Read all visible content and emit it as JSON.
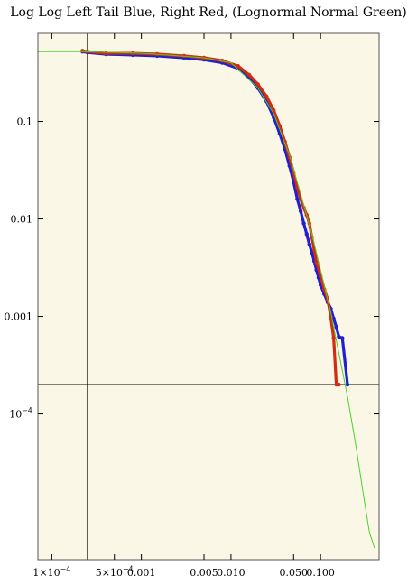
{
  "chart_data": {
    "type": "scatter",
    "title": "Log Log Left Tail Blue, Right Red, (Lognormal Normal Green)",
    "xlabel": "",
    "ylabel": "",
    "x_scale": "log",
    "y_scale": "log",
    "xlim": [
      7e-05,
      0.45
    ],
    "ylim": [
      3.2e-06,
      0.8
    ],
    "grid": false,
    "background": "#fbf7e6",
    "x_ticks": [
      {
        "value": 0.0001,
        "label": "1×10",
        "exp": "−4"
      },
      {
        "value": 0.0005,
        "label": "5×10",
        "exp": "−4"
      },
      {
        "value": 0.001,
        "label": "0.001"
      },
      {
        "value": 0.005,
        "label": "0.005"
      },
      {
        "value": 0.01,
        "label": "0.010"
      },
      {
        "value": 0.05,
        "label": "0.050"
      },
      {
        "value": 0.1,
        "label": "0.100"
      }
    ],
    "y_ticks": [
      {
        "value": 0.1,
        "label": "0.1"
      },
      {
        "value": 0.01,
        "label": "0.01"
      },
      {
        "value": 0.001,
        "label": "0.001"
      },
      {
        "value": 0.0001,
        "label": "10",
        "exp": "−4"
      }
    ],
    "reference_lines": {
      "x": 0.00025,
      "y": 0.0002
    },
    "series": [
      {
        "color": "#1f1fd6",
        "style": "points",
        "x": [
          0.00022,
          0.00025,
          0.0004,
          0.0008,
          0.0015,
          0.003,
          0.005,
          0.008,
          0.012,
          0.016,
          0.02,
          0.025,
          0.03,
          0.035,
          0.04,
          0.045,
          0.05,
          0.055,
          0.06,
          0.065,
          0.07,
          0.075,
          0.08,
          0.085,
          0.09,
          0.095,
          0.1,
          0.11,
          0.12,
          0.13,
          0.14,
          0.15,
          0.16,
          0.175,
          0.2
        ],
        "y": [
          0.52,
          0.51,
          0.49,
          0.48,
          0.47,
          0.45,
          0.43,
          0.4,
          0.35,
          0.28,
          0.22,
          0.16,
          0.11,
          0.075,
          0.052,
          0.035,
          0.024,
          0.016,
          0.012,
          0.009,
          0.007,
          0.0055,
          0.0045,
          0.0037,
          0.003,
          0.0025,
          0.0021,
          0.0017,
          0.0014,
          0.0012,
          0.00095,
          0.00078,
          0.00062,
          0.0006,
          0.0002
        ]
      },
      {
        "color": "#d42a10",
        "style": "points",
        "x": [
          0.00022,
          0.00025,
          0.0004,
          0.0008,
          0.0015,
          0.003,
          0.005,
          0.008,
          0.012,
          0.016,
          0.02,
          0.025,
          0.03,
          0.035,
          0.04,
          0.045,
          0.05,
          0.055,
          0.06,
          0.065,
          0.07,
          0.075,
          0.08,
          0.085,
          0.09,
          0.1,
          0.11,
          0.12,
          0.13,
          0.14,
          0.15,
          0.16
        ],
        "y": [
          0.53,
          0.52,
          0.5,
          0.5,
          0.49,
          0.47,
          0.45,
          0.42,
          0.37,
          0.3,
          0.24,
          0.18,
          0.13,
          0.09,
          0.062,
          0.043,
          0.03,
          0.021,
          0.016,
          0.013,
          0.011,
          0.009,
          0.0065,
          0.0048,
          0.0036,
          0.0026,
          0.0019,
          0.0015,
          0.00098,
          0.0006,
          0.0002,
          0.0002
        ]
      },
      {
        "color": "#4cd22a",
        "style": "line",
        "x": [
          7e-05,
          0.0002,
          0.0005,
          0.001,
          0.002,
          0.005,
          0.01,
          0.02,
          0.03,
          0.045,
          0.06,
          0.08,
          0.1,
          0.13,
          0.16,
          0.2,
          0.25,
          0.3,
          0.35,
          0.4
        ],
        "y": [
          0.52,
          0.52,
          0.51,
          0.5,
          0.48,
          0.45,
          0.4,
          0.22,
          0.12,
          0.045,
          0.018,
          0.007,
          0.003,
          0.0011,
          0.00042,
          0.00015,
          4.5e-05,
          1.5e-05,
          6.2e-06,
          4.2e-06
        ]
      }
    ]
  }
}
